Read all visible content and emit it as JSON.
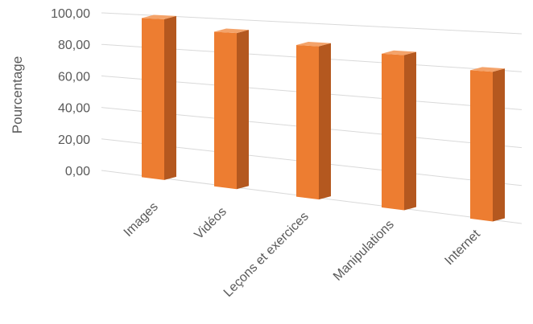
{
  "chart_data": {
    "type": "bar",
    "title": "",
    "xlabel": "",
    "ylabel": "Pourcentage",
    "categories": [
      "Images",
      "Vidéos",
      "Leçons et exercices",
      "Manipulations",
      "Internet"
    ],
    "series": [
      {
        "values": [
          98,
          92,
          87,
          85,
          79
        ]
      }
    ],
    "yticks": [
      "0,00",
      "20,00",
      "40,00",
      "60,00",
      "80,00",
      "100,00"
    ],
    "ylim": [
      0,
      100
    ],
    "grid": true,
    "legend": "none",
    "colors": {
      "bar_front": "#ED7D31",
      "bar_side": "#B4581F",
      "bar_top": "#F4A36A",
      "gridline": "#D9D9D9",
      "text": "#595959"
    }
  }
}
